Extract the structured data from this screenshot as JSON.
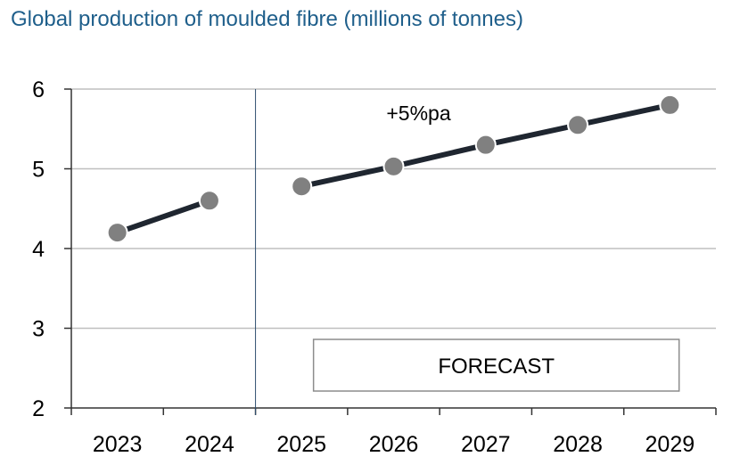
{
  "title": "Global production of moulded fibre (millions of tonnes)",
  "chart_data": {
    "type": "line",
    "title": "Global production of moulded fibre (millions of tonnes)",
    "xlabel": "",
    "ylabel": "",
    "categories": [
      "2023",
      "2024",
      "2025",
      "2026",
      "2027",
      "2028",
      "2029"
    ],
    "ylim": [
      2,
      6
    ],
    "yticks": [
      2,
      3,
      4,
      5,
      6
    ],
    "grid": true,
    "series": [
      {
        "segment": "actual",
        "x": [
          "2023",
          "2024"
        ],
        "values": [
          4.2,
          4.6
        ]
      },
      {
        "segment": "forecast",
        "x": [
          "2025",
          "2026",
          "2027",
          "2028",
          "2029"
        ],
        "values": [
          4.78,
          5.03,
          5.3,
          5.55,
          5.8
        ]
      }
    ],
    "annotations": {
      "growth_label": "+5%pa",
      "forecast_label": "FORECAST"
    },
    "colors": {
      "line": "#1f2630",
      "marker": "#808080",
      "grid": "#bfbfbf",
      "title": "#1f5f8b"
    }
  }
}
